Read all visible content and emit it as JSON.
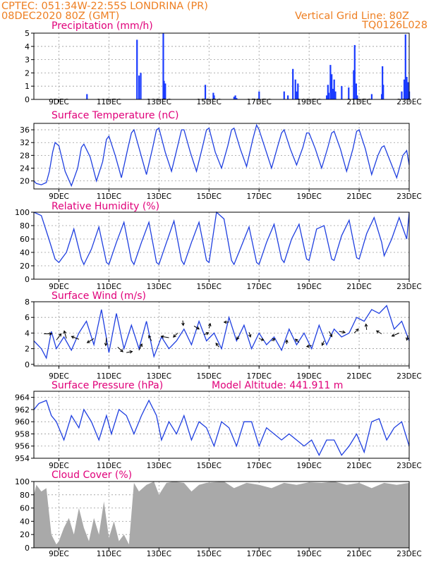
{
  "header": {
    "line1": "CPTEC:   051:34W-22:55S   LONDRINA (PR)",
    "line2": "08DEC2020 80Z (GMT)",
    "grid_note": "Vertical Grid Line: 80Z",
    "code": "TQ0126L028"
  },
  "x_axis": {
    "tick_labels": [
      "9DEC",
      "11DEC",
      "13DEC",
      "15DEC",
      "17DEC",
      "19DEC",
      "21DEC",
      "23DEC"
    ],
    "tick_days": [
      9,
      11,
      13,
      15,
      17,
      19,
      21,
      23
    ],
    "range_days": [
      8.0,
      23.0
    ]
  },
  "colors": {
    "line": "#1f3fe0",
    "precip": "#1a3bff",
    "cloud": "#a9a9a9",
    "title": "#e0007a",
    "header": "#ee7f22"
  },
  "chart_data": [
    {
      "id": "precip",
      "type": "bar",
      "title": "Precipitation (mm/h)",
      "ylim": [
        0,
        5
      ],
      "yticks": [
        0,
        1,
        2,
        3,
        4,
        5
      ],
      "grid": true,
      "bars": [
        [
          10.12,
          0.4
        ],
        [
          12.12,
          4.5
        ],
        [
          12.2,
          1.8
        ],
        [
          12.27,
          2.0
        ],
        [
          13.17,
          5.0
        ],
        [
          13.2,
          1.4
        ],
        [
          13.25,
          1.2
        ],
        [
          14.85,
          1.1
        ],
        [
          15.17,
          0.5
        ],
        [
          15.2,
          0.3
        ],
        [
          16.0,
          0.2
        ],
        [
          16.05,
          0.3
        ],
        [
          16.1,
          0.1
        ],
        [
          17.0,
          0.6
        ],
        [
          18.0,
          0.6
        ],
        [
          18.15,
          0.3
        ],
        [
          18.35,
          2.3
        ],
        [
          18.45,
          1.5
        ],
        [
          18.5,
          0.6
        ],
        [
          18.55,
          1.2
        ],
        [
          19.7,
          0.3
        ],
        [
          19.78,
          0.5
        ],
        [
          19.85,
          2.6
        ],
        [
          19.9,
          1.9
        ],
        [
          19.95,
          0.8
        ],
        [
          20.0,
          1.5
        ],
        [
          20.05,
          0.6
        ],
        [
          19.75,
          1.1
        ],
        [
          20.3,
          1.0
        ],
        [
          20.58,
          0.9
        ],
        [
          20.78,
          2.2
        ],
        [
          20.82,
          4.1
        ],
        [
          20.88,
          1.2
        ],
        [
          20.92,
          0.3
        ],
        [
          21.5,
          0.4
        ],
        [
          21.9,
          0.4
        ],
        [
          21.93,
          2.5
        ],
        [
          21.96,
          1.1
        ],
        [
          22.7,
          0.6
        ],
        [
          22.8,
          1.5
        ],
        [
          22.85,
          4.9
        ],
        [
          22.9,
          1.7
        ],
        [
          22.95,
          1.3
        ],
        [
          23.0,
          0.6
        ]
      ]
    },
    {
      "id": "temp",
      "type": "line",
      "title": "Surface Temperature (nC)",
      "ylim": [
        17.5,
        38
      ],
      "yticks": [
        20,
        24,
        28,
        32,
        36
      ],
      "grid": true,
      "x": [
        8.0,
        8.1,
        8.3,
        8.5,
        8.62,
        8.75,
        8.85,
        9.0,
        9.25,
        9.5,
        9.75,
        9.9,
        10.0,
        10.25,
        10.5,
        10.75,
        10.9,
        11.0,
        11.25,
        11.5,
        11.75,
        11.9,
        12.0,
        12.25,
        12.5,
        12.75,
        12.9,
        13.0,
        13.25,
        13.5,
        13.75,
        13.9,
        14.0,
        14.25,
        14.5,
        14.75,
        14.9,
        15.0,
        15.25,
        15.5,
        15.75,
        15.9,
        16.0,
        16.25,
        16.5,
        16.75,
        16.9,
        17.0,
        17.25,
        17.5,
        17.75,
        17.9,
        18.0,
        18.25,
        18.5,
        18.75,
        18.9,
        19.0,
        19.25,
        19.5,
        19.75,
        19.9,
        20.0,
        20.25,
        20.5,
        20.75,
        20.9,
        21.0,
        21.25,
        21.5,
        21.75,
        21.9,
        22.0,
        22.25,
        22.5,
        22.75,
        22.9,
        23.0
      ],
      "y": [
        20,
        19.2,
        18.8,
        19.5,
        23,
        29,
        32,
        31,
        23,
        18.5,
        24,
        30.5,
        31.5,
        27.5,
        20,
        26,
        33,
        34,
        28,
        21,
        30,
        35,
        36,
        29,
        22,
        30.5,
        36,
        36.5,
        29,
        23,
        31,
        36,
        36,
        29,
        23,
        31,
        36,
        36.5,
        29,
        24,
        31,
        36,
        36.5,
        30,
        24.5,
        33,
        37.5,
        36,
        30,
        24,
        31,
        35,
        36,
        30,
        25,
        30.5,
        35,
        35,
        30,
        24,
        30.5,
        35,
        35.5,
        30,
        23,
        30,
        35.5,
        36,
        30,
        22,
        28,
        30.5,
        31,
        26,
        21,
        28,
        29.5,
        25
      ]
    },
    {
      "id": "rh",
      "type": "line",
      "title": "Relative Humidity (%)",
      "ylim": [
        0,
        100
      ],
      "yticks": [
        0,
        20,
        40,
        60,
        80,
        100
      ],
      "grid": true,
      "x": [
        8.0,
        8.3,
        8.6,
        8.85,
        9.0,
        9.3,
        9.6,
        9.9,
        10.0,
        10.3,
        10.6,
        10.9,
        11.0,
        11.3,
        11.6,
        11.9,
        12.0,
        12.3,
        12.6,
        12.9,
        13.0,
        13.3,
        13.6,
        13.9,
        14.0,
        14.3,
        14.6,
        14.9,
        15.0,
        15.3,
        15.6,
        15.9,
        16.0,
        16.3,
        16.6,
        16.9,
        17.0,
        17.3,
        17.6,
        17.9,
        18.0,
        18.3,
        18.6,
        18.9,
        19.0,
        19.3,
        19.6,
        19.9,
        20.0,
        20.3,
        20.6,
        20.9,
        21.0,
        21.3,
        21.6,
        21.9,
        22.0,
        22.3,
        22.6,
        22.9,
        23.0
      ],
      "y": [
        100,
        95,
        60,
        30,
        25,
        40,
        75,
        30,
        22,
        45,
        78,
        25,
        22,
        55,
        85,
        28,
        22,
        55,
        85,
        25,
        22,
        55,
        87,
        28,
        22,
        55,
        85,
        28,
        25,
        100,
        90,
        28,
        22,
        50,
        78,
        25,
        22,
        55,
        82,
        30,
        25,
        60,
        82,
        30,
        28,
        75,
        80,
        30,
        28,
        65,
        88,
        32,
        30,
        68,
        92,
        55,
        35,
        60,
        92,
        60,
        100
      ]
    },
    {
      "id": "wind",
      "type": "line",
      "title": "Surface Wind (m/s)",
      "ylim": [
        -0.2,
        8
      ],
      "yticks": [
        0,
        2,
        4,
        6,
        8
      ],
      "grid": true,
      "x": [
        8.0,
        8.3,
        8.5,
        8.7,
        8.9,
        9.2,
        9.5,
        9.8,
        10.1,
        10.4,
        10.7,
        11.0,
        11.3,
        11.6,
        11.9,
        12.2,
        12.5,
        12.8,
        13.1,
        13.4,
        13.7,
        14.0,
        14.3,
        14.6,
        14.9,
        15.2,
        15.5,
        15.8,
        16.1,
        16.4,
        16.7,
        17.0,
        17.3,
        17.6,
        17.9,
        18.2,
        18.5,
        18.8,
        19.1,
        19.4,
        19.7,
        20.0,
        20.3,
        20.6,
        20.9,
        21.2,
        21.5,
        21.8,
        22.1,
        22.4,
        22.7,
        23.0
      ],
      "y": [
        3.0,
        2.0,
        0.8,
        4.2,
        2.0,
        3.5,
        1.8,
        4.0,
        5.5,
        2.5,
        7.0,
        1.5,
        6.5,
        2.0,
        5.0,
        2.0,
        5.5,
        1.0,
        3.5,
        2.0,
        3.0,
        4.5,
        2.5,
        5.5,
        3.0,
        4.0,
        2.0,
        6.0,
        3.0,
        5.0,
        2.0,
        4.0,
        2.5,
        3.5,
        1.8,
        4.5,
        2.5,
        4.0,
        2.0,
        5.0,
        2.5,
        4.5,
        3.5,
        4.0,
        6.0,
        5.5,
        7.0,
        6.5,
        7.5,
        4.5,
        5.5,
        3.0
      ],
      "arrows": [
        [
          8.4,
          3.9,
          0.8
        ],
        [
          8.9,
          3.1,
          0.8
        ],
        [
          9.3,
          3.3,
          0.8
        ],
        [
          9.8,
          3.2,
          0.8
        ],
        [
          10.4,
          3.3,
          0.8
        ],
        [
          10.9,
          3.4,
          0.8
        ],
        [
          11.35,
          2.2,
          0.7
        ],
        [
          11.7,
          1.5,
          0.6
        ],
        [
          12.2,
          1.8,
          0.7
        ],
        [
          12.7,
          3.0,
          0.6
        ],
        [
          13.4,
          3.4,
          0.8
        ],
        [
          13.75,
          4.0,
          0.6
        ],
        [
          13.95,
          5.6,
          0.5
        ],
        [
          14.4,
          4.9,
          0.6
        ],
        [
          14.8,
          3.8,
          0.5
        ],
        [
          15.0,
          4.6,
          0.5
        ],
        [
          15.4,
          2.2,
          0.5
        ],
        [
          15.8,
          5.4,
          0.5
        ],
        [
          16.2,
          3.6,
          0.4
        ],
        [
          16.6,
          4.1,
          0.5
        ],
        [
          17.0,
          3.3,
          0.5
        ],
        [
          17.5,
          3.0,
          0.4
        ],
        [
          18.1,
          2.6,
          0.4
        ],
        [
          18.6,
          2.8,
          0.5
        ],
        [
          19.1,
          2.4,
          0.5
        ],
        [
          19.6,
          3.0,
          0.5
        ],
        [
          19.8,
          4.2,
          0.6
        ],
        [
          20.2,
          4.2,
          0.6
        ],
        [
          20.8,
          4.0,
          0.6
        ],
        [
          21.3,
          4.4,
          0.6
        ],
        [
          21.9,
          3.9,
          0.6
        ],
        [
          22.6,
          4.0,
          0.8
        ],
        [
          22.95,
          3.7,
          0.5
        ]
      ]
    },
    {
      "id": "pres",
      "type": "line",
      "title": "Surface Pressure (hPa)",
      "annotation": "Model Altitude: 441.911 m",
      "ylim": [
        954,
        965
      ],
      "yticks": [
        954,
        956,
        958,
        960,
        962,
        964
      ],
      "grid": true,
      "x": [
        8.0,
        8.2,
        8.5,
        8.7,
        8.9,
        9.2,
        9.5,
        9.8,
        10.0,
        10.3,
        10.6,
        10.9,
        11.1,
        11.4,
        11.7,
        12.0,
        12.3,
        12.6,
        12.9,
        13.1,
        13.4,
        13.7,
        14.0,
        14.3,
        14.6,
        14.9,
        15.2,
        15.5,
        15.8,
        16.1,
        16.4,
        16.7,
        17.0,
        17.3,
        17.6,
        17.9,
        18.2,
        18.5,
        18.8,
        19.1,
        19.4,
        19.7,
        20.0,
        20.3,
        20.6,
        20.9,
        21.2,
        21.5,
        21.8,
        22.1,
        22.4,
        22.7,
        23.0
      ],
      "y": [
        962,
        963,
        963.5,
        961,
        960,
        957,
        961,
        959,
        962,
        960,
        957,
        961,
        958,
        962,
        961,
        958,
        961,
        963.5,
        961,
        957,
        960,
        958,
        961,
        957,
        960,
        959,
        956,
        960,
        959,
        956,
        960,
        960,
        956,
        959,
        958,
        957,
        958,
        957,
        956,
        957,
        954.5,
        957,
        957,
        954.5,
        956,
        958,
        955,
        960,
        960.5,
        957,
        959,
        960,
        956
      ]
    },
    {
      "id": "cloud",
      "type": "area",
      "title": "Cloud Cover (%)",
      "ylim": [
        0,
        100
      ],
      "yticks": [
        0,
        20,
        40,
        60,
        80,
        100
      ],
      "grid": true,
      "x": [
        8.0,
        8.1,
        8.3,
        8.5,
        8.7,
        8.9,
        9.0,
        9.2,
        9.4,
        9.6,
        9.8,
        10.0,
        10.2,
        10.4,
        10.6,
        10.8,
        11.0,
        11.2,
        11.4,
        11.6,
        11.8,
        12.0,
        12.2,
        12.5,
        12.8,
        13.0,
        13.3,
        13.6,
        14.0,
        14.3,
        14.6,
        14.9,
        15.2,
        15.6,
        16.0,
        16.5,
        17.0,
        17.5,
        18.0,
        18.5,
        19.0,
        19.5,
        20.0,
        20.5,
        21.0,
        21.5,
        22.0,
        22.5,
        23.0
      ],
      "y": [
        80,
        95,
        85,
        90,
        20,
        5,
        10,
        30,
        45,
        20,
        60,
        30,
        10,
        45,
        20,
        70,
        15,
        40,
        10,
        20,
        5,
        98,
        85,
        95,
        100,
        80,
        98,
        100,
        98,
        85,
        95,
        98,
        99,
        100,
        90,
        98,
        95,
        90,
        98,
        95,
        99,
        98,
        100,
        95,
        98,
        90,
        98,
        95,
        98
      ]
    }
  ]
}
